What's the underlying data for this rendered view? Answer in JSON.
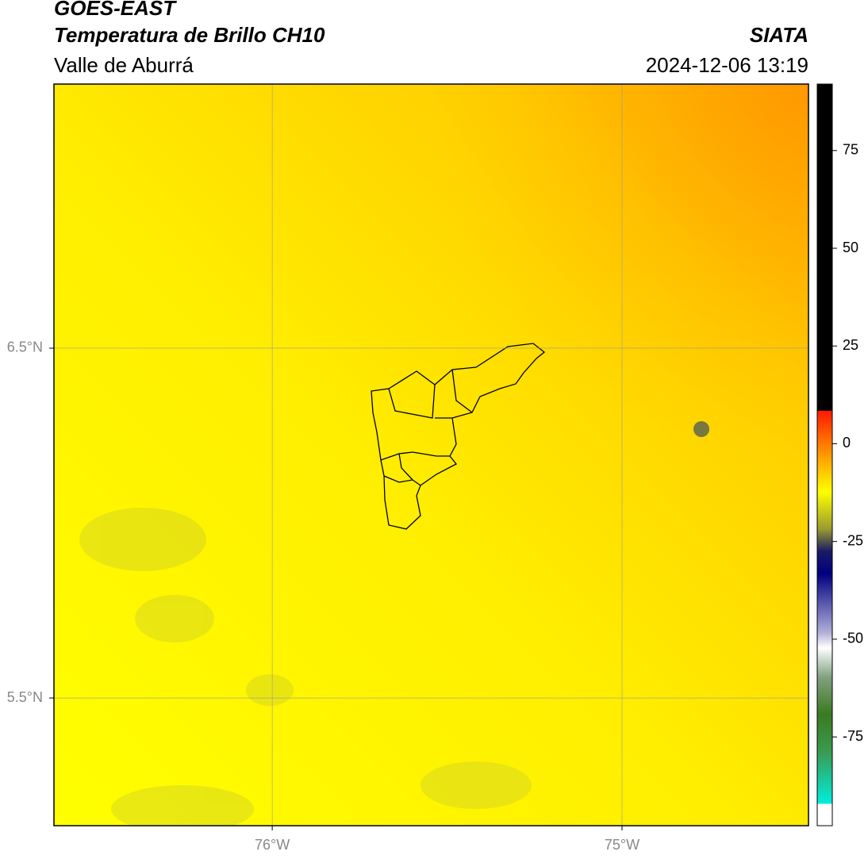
{
  "header": {
    "title": "GOES-EAST",
    "subtitle": "Temperatura de Brillo CH10",
    "region": "Valle de Aburrá",
    "source": "SIATA",
    "datetime": "2024-12-06 13:19"
  },
  "map": {
    "xlim": [
      -76.624,
      -74.467
    ],
    "ylim": [
      5.135,
      7.255
    ],
    "xticks": [
      {
        "value": -76,
        "label": "76°W"
      },
      {
        "value": -75,
        "label": "75°W"
      }
    ],
    "yticks": [
      {
        "value": 6.5,
        "label": "6.5°N"
      },
      {
        "value": 5.5,
        "label": "5.5°N"
      }
    ],
    "grid": true
  },
  "colorbar": {
    "lim": [
      -97.7,
      92
    ],
    "ticks": [
      75,
      50,
      25,
      0,
      -25,
      -50,
      -75
    ]
  }
}
